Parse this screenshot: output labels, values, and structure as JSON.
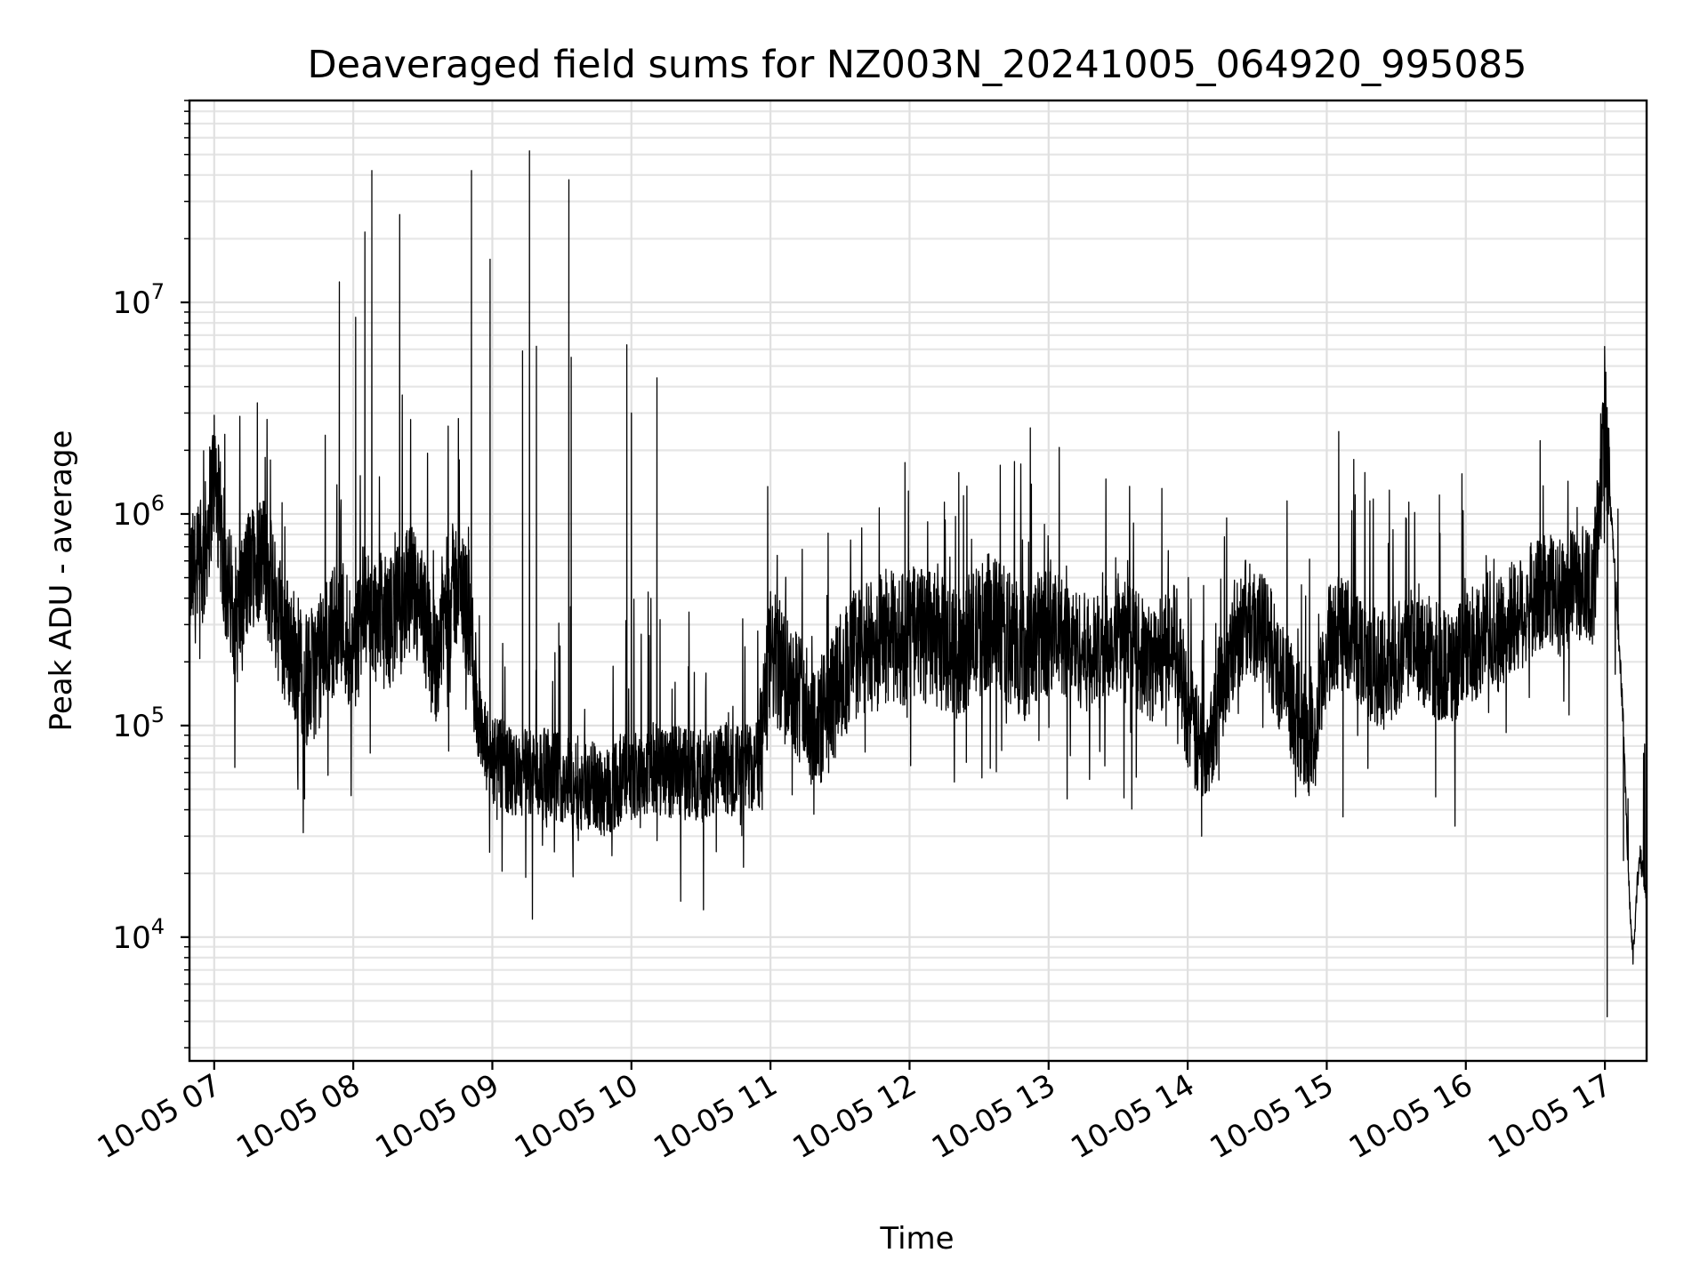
{
  "chart_data": {
    "type": "line",
    "title": "Deaveraged field sums for NZ003N_20241005_064920_995085",
    "xlabel": "Time",
    "ylabel": "Peak ADU - average",
    "yscale": "log",
    "ylim": [
      2600,
      90000000
    ],
    "xlim": [
      "10-05 06:49:20",
      "10-05 17:18:00"
    ],
    "grid": "major and minor",
    "x_ticks": [
      {
        "label": "10-05 07",
        "time": "07:00"
      },
      {
        "label": "10-05 08",
        "time": "08:00"
      },
      {
        "label": "10-05 09",
        "time": "09:00"
      },
      {
        "label": "10-05 10",
        "time": "10:00"
      },
      {
        "label": "10-05 11",
        "time": "11:00"
      },
      {
        "label": "10-05 12",
        "time": "12:00"
      },
      {
        "label": "10-05 13",
        "time": "13:00"
      },
      {
        "label": "10-05 14",
        "time": "14:00"
      },
      {
        "label": "10-05 15",
        "time": "15:00"
      },
      {
        "label": "10-05 16",
        "time": "16:00"
      },
      {
        "label": "10-05 17",
        "time": "17:00"
      }
    ],
    "y_ticks": [
      {
        "base": "10",
        "exp": "4",
        "value": 10000
      },
      {
        "base": "10",
        "exp": "5",
        "value": 100000
      },
      {
        "base": "10",
        "exp": "6",
        "value": 1000000
      },
      {
        "base": "10",
        "exp": "7",
        "value": 10000000
      }
    ],
    "series": [
      {
        "color": "#000000",
        "x": [
          "06:49",
          "06:55",
          "07:00",
          "07:05",
          "07:10",
          "07:15",
          "07:20",
          "07:25",
          "07:30",
          "07:35",
          "07:40",
          "07:45",
          "07:50",
          "07:55",
          "08:00",
          "08:05",
          "08:10",
          "08:15",
          "08:20",
          "08:25",
          "08:30",
          "08:35",
          "08:40",
          "08:45",
          "08:50",
          "08:55",
          "09:00",
          "09:05",
          "09:10",
          "09:15",
          "09:20",
          "09:25",
          "09:30",
          "09:35",
          "09:40",
          "09:45",
          "09:50",
          "09:55",
          "10:00",
          "10:05",
          "10:10",
          "10:15",
          "10:20",
          "10:25",
          "10:30",
          "10:35",
          "10:40",
          "10:45",
          "10:50",
          "10:55",
          "11:00",
          "11:05",
          "11:10",
          "11:15",
          "11:20",
          "11:25",
          "11:30",
          "11:35",
          "11:40",
          "11:45",
          "11:50",
          "11:55",
          "12:00",
          "12:05",
          "12:10",
          "12:15",
          "12:20",
          "12:25",
          "12:30",
          "12:35",
          "12:40",
          "12:45",
          "12:50",
          "12:55",
          "13:00",
          "13:05",
          "13:10",
          "13:15",
          "13:20",
          "13:25",
          "13:30",
          "13:35",
          "13:40",
          "13:45",
          "13:50",
          "13:55",
          "14:00",
          "14:05",
          "14:10",
          "14:15",
          "14:20",
          "14:25",
          "14:30",
          "14:35",
          "14:40",
          "14:45",
          "14:50",
          "14:55",
          "15:00",
          "15:05",
          "15:10",
          "15:15",
          "15:20",
          "15:25",
          "15:30",
          "15:35",
          "15:40",
          "15:45",
          "15:50",
          "15:55",
          "16:00",
          "16:05",
          "16:10",
          "16:15",
          "16:20",
          "16:25",
          "16:30",
          "16:35",
          "16:40",
          "16:45",
          "16:50",
          "16:55",
          "17:00",
          "17:01",
          "17:05",
          "17:08",
          "17:10",
          "17:12",
          "17:15",
          "17:18"
        ],
        "y": [
          450000,
          500000,
          1500000,
          450000,
          300000,
          500000,
          600000,
          400000,
          250000,
          200000,
          150000,
          180000,
          250000,
          300000,
          200000,
          350000,
          300000,
          280000,
          330000,
          400000,
          300000,
          180000,
          350000,
          450000,
          300000,
          80000,
          65000,
          60000,
          55000,
          58000,
          57000,
          55000,
          54000,
          52000,
          50000,
          48000,
          47000,
          52000,
          55000,
          58000,
          60000,
          58000,
          57000,
          56000,
          55000,
          55000,
          60000,
          58000,
          60000,
          62000,
          200000,
          170000,
          150000,
          110000,
          90000,
          110000,
          150000,
          200000,
          210000,
          220000,
          250000,
          230000,
          250000,
          250000,
          240000,
          220000,
          200000,
          230000,
          260000,
          300000,
          260000,
          230000,
          200000,
          240000,
          270000,
          250000,
          230000,
          210000,
          200000,
          230000,
          260000,
          230000,
          200000,
          180000,
          220000,
          240000,
          110000,
          70000,
          90000,
          150000,
          250000,
          300000,
          280000,
          240000,
          160000,
          120000,
          90000,
          80000,
          220000,
          260000,
          250000,
          220000,
          180000,
          170000,
          200000,
          240000,
          230000,
          200000,
          180000,
          170000,
          210000,
          240000,
          270000,
          250000,
          300000,
          330000,
          380000,
          400000,
          370000,
          420000,
          450000,
          400000,
          2800000,
          1800000,
          400000,
          100000,
          20000,
          8000,
          25000,
          15000
        ]
      }
    ],
    "spikes": [
      {
        "time": "07:00",
        "value": 1950000
      },
      {
        "time": "07:22",
        "value": 1850000
      },
      {
        "time": "07:54",
        "value": 12500000
      },
      {
        "time": "08:01",
        "value": 8500000
      },
      {
        "time": "08:05",
        "value": 21500000
      },
      {
        "time": "08:08",
        "value": 17000000
      },
      {
        "time": "08:08",
        "value": 42000000
      },
      {
        "time": "08:20",
        "value": 26000000
      },
      {
        "time": "08:51",
        "value": 42000000
      },
      {
        "time": "08:59",
        "value": 16000000
      },
      {
        "time": "09:13",
        "value": 5900000
      },
      {
        "time": "09:16",
        "value": 52000000
      },
      {
        "time": "09:19",
        "value": 6200000
      },
      {
        "time": "09:33",
        "value": 38000000
      },
      {
        "time": "09:34",
        "value": 5500000
      },
      {
        "time": "09:58",
        "value": 6300000
      },
      {
        "time": "10:00",
        "value": 3000000
      },
      {
        "time": "10:11",
        "value": 4400000
      },
      {
        "time": "11:58",
        "value": 1750000
      },
      {
        "time": "17:00",
        "value": 4300000
      }
    ],
    "dips": [
      {
        "time": "07:39",
        "value": 45000
      },
      {
        "time": "09:02",
        "value": 36000
      },
      {
        "time": "10:00",
        "value": 36000
      },
      {
        "time": "13:08",
        "value": 45000
      },
      {
        "time": "14:06",
        "value": 30000
      },
      {
        "time": "15:07",
        "value": 37000
      },
      {
        "time": "15:47",
        "value": 46000
      },
      {
        "time": "17:01",
        "value": 4200
      },
      {
        "time": "17:08",
        "value": 23000
      }
    ]
  }
}
